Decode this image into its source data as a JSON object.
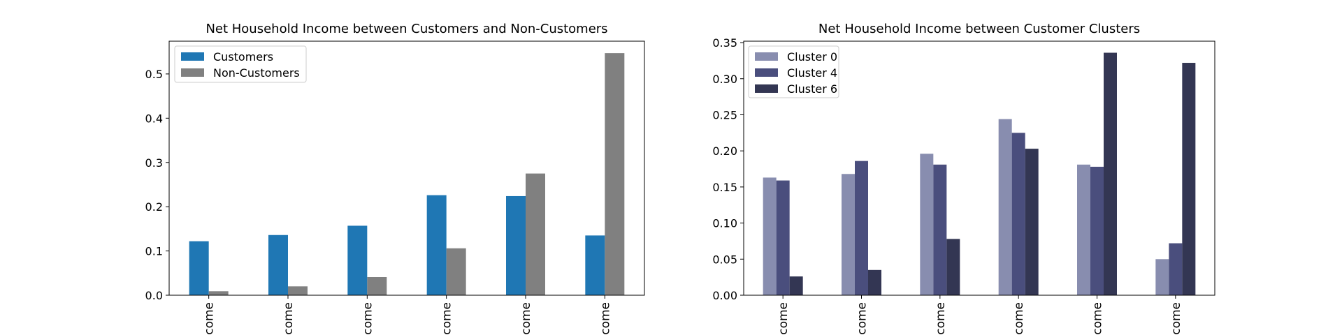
{
  "chart_data": [
    {
      "type": "bar",
      "title": "Net Household Income between Customers and Non-Customers",
      "xlabel": "",
      "ylabel": "",
      "categories": [
        "come",
        "come",
        "come",
        "come",
        "come",
        "come"
      ],
      "series": [
        {
          "name": "Customers",
          "color": "#1f77b4",
          "values": [
            0.122,
            0.136,
            0.157,
            0.226,
            0.224,
            0.135
          ]
        },
        {
          "name": "Non-Customers",
          "color": "#808080",
          "values": [
            0.009,
            0.02,
            0.041,
            0.106,
            0.275,
            0.547
          ]
        }
      ],
      "ylim": [
        0,
        0.574
      ],
      "yticks": [
        0.0,
        0.1,
        0.2,
        0.3,
        0.4,
        0.5
      ],
      "ytick_labels": [
        "0.0",
        "0.1",
        "0.2",
        "0.3",
        "0.4",
        "0.5"
      ],
      "grid": false,
      "legend_position": "top-left"
    },
    {
      "type": "bar",
      "title": "Net Household Income between Customer Clusters",
      "xlabel": "",
      "ylabel": "",
      "categories": [
        "come",
        "come",
        "come",
        "come",
        "come",
        "come"
      ],
      "series": [
        {
          "name": "Cluster 0",
          "color": "#888daf",
          "values": [
            0.163,
            0.168,
            0.196,
            0.244,
            0.181,
            0.05
          ]
        },
        {
          "name": "Cluster 4",
          "color": "#4a4e7d",
          "values": [
            0.159,
            0.186,
            0.181,
            0.225,
            0.178,
            0.072
          ]
        },
        {
          "name": "Cluster 6",
          "color": "#333653",
          "values": [
            0.026,
            0.035,
            0.078,
            0.203,
            0.336,
            0.322
          ]
        }
      ],
      "ylim": [
        0,
        0.352
      ],
      "yticks": [
        0.0,
        0.05,
        0.1,
        0.15,
        0.2,
        0.25,
        0.3,
        0.35
      ],
      "ytick_labels": [
        "0.00",
        "0.05",
        "0.10",
        "0.15",
        "0.20",
        "0.25",
        "0.30",
        "0.35"
      ],
      "grid": false,
      "legend_position": "top-left"
    }
  ]
}
